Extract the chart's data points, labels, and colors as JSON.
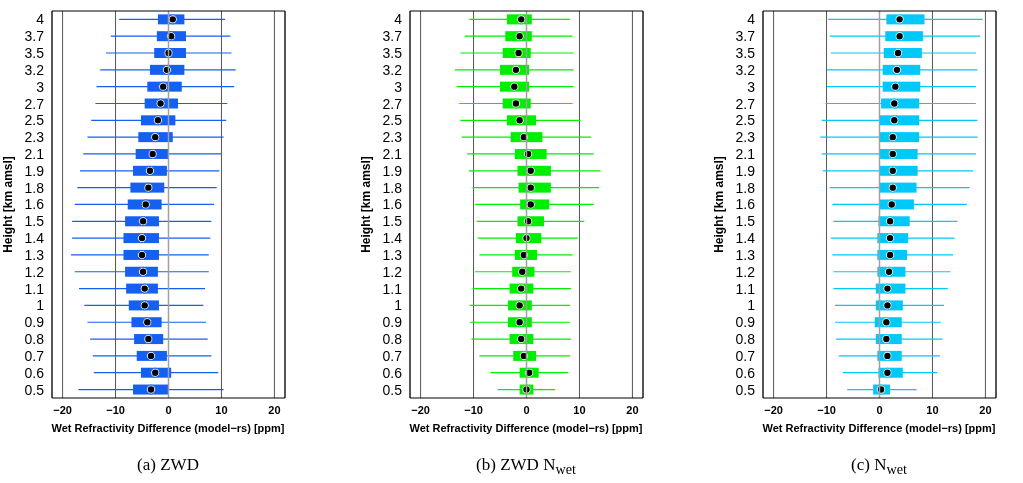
{
  "chart_data": [
    {
      "type": "box",
      "orientation": "horizontal",
      "color": "#1560f0",
      "xlabel": "Wet Refractivity Difference (model−rs) [ppm]",
      "ylabel": "Height [km amsl]",
      "xlim": [
        -22,
        22
      ],
      "xticks": [
        -20,
        -10,
        0,
        10,
        20
      ],
      "grid": "x",
      "ref_lines": [
        {
          "axis": "x",
          "value": 0,
          "color": "#a0a0a0"
        }
      ],
      "annotations": [
        "(a) ZWD"
      ],
      "categories": [
        "4",
        "3.7",
        "3.5",
        "3.2",
        "3",
        "2.7",
        "2.5",
        "2.3",
        "2.1",
        "1.9",
        "1.8",
        "1.6",
        "1.5",
        "1.4",
        "1.3",
        "1.2",
        "1.1",
        "1",
        "0.9",
        "0.8",
        "0.7",
        "0.6",
        "0.5"
      ],
      "boxes": [
        {
          "low": -9.3,
          "q1": -2,
          "median": 0.8,
          "q3": 3,
          "high": 10.7
        },
        {
          "low": -10.9,
          "q1": -2.2,
          "median": 0.5,
          "q3": 3.3,
          "high": 11.7
        },
        {
          "low": -11.8,
          "q1": -2.7,
          "median": 0,
          "q3": 3.3,
          "high": 11.9
        },
        {
          "low": -12.9,
          "q1": -3.5,
          "median": -0.3,
          "q3": 3,
          "high": 12.7
        },
        {
          "low": -13.6,
          "q1": -4,
          "median": -1,
          "q3": 2.5,
          "high": 12.4
        },
        {
          "low": -13.8,
          "q1": -4.5,
          "median": -1.5,
          "q3": 1.8,
          "high": 11.1
        },
        {
          "low": -14.6,
          "q1": -5.2,
          "median": -2,
          "q3": 1.3,
          "high": 10.9
        },
        {
          "low": -15.3,
          "q1": -5.7,
          "median": -2.5,
          "q3": 0.8,
          "high": 10.4
        },
        {
          "low": -16.1,
          "q1": -6.2,
          "median": -3,
          "q3": 0,
          "high": 9.9
        },
        {
          "low": -16.7,
          "q1": -6.7,
          "median": -3.5,
          "q3": -0.3,
          "high": 9.6
        },
        {
          "low": -17.2,
          "q1": -7.2,
          "median": -3.8,
          "q3": -0.8,
          "high": 9.1
        },
        {
          "low": -17.7,
          "q1": -7.7,
          "median": -4.3,
          "q3": -1.3,
          "high": 8.6
        },
        {
          "low": -18.2,
          "q1": -8.2,
          "median": -4.8,
          "q3": -1.8,
          "high": 8.1
        },
        {
          "low": -18.2,
          "q1": -8.5,
          "median": -5,
          "q3": -1.8,
          "high": 7.9
        },
        {
          "low": -18.4,
          "q1": -8.5,
          "median": -5,
          "q3": -1.8,
          "high": 7.6
        },
        {
          "low": -17.7,
          "q1": -8.2,
          "median": -4.8,
          "q3": -2,
          "high": 7.6
        },
        {
          "low": -16.9,
          "q1": -8,
          "median": -4.5,
          "q3": -2,
          "high": 6.9
        },
        {
          "low": -15.9,
          "q1": -7.5,
          "median": -4.5,
          "q3": -1.8,
          "high": 6.6
        },
        {
          "low": -15.3,
          "q1": -7,
          "median": -4,
          "q3": -1.3,
          "high": 7.1
        },
        {
          "low": -14.8,
          "q1": -6.5,
          "median": -3.8,
          "q3": -1,
          "high": 7.4
        },
        {
          "low": -14.3,
          "q1": -6,
          "median": -3.3,
          "q3": -0.3,
          "high": 8.1
        },
        {
          "low": -14.1,
          "q1": -5.2,
          "median": -2.5,
          "q3": 0.5,
          "high": 9.4
        },
        {
          "low": -17,
          "q1": -6.7,
          "median": -3.3,
          "q3": 0,
          "high": 10.4
        }
      ]
    },
    {
      "type": "box",
      "orientation": "horizontal",
      "color": "#00ee00",
      "xlabel": "Wet Refractivity Difference (model−rs) [ppm]",
      "ylabel": "Height [km amsl]",
      "xlim": [
        -22,
        22
      ],
      "xticks": [
        -20,
        -10,
        0,
        10,
        20
      ],
      "grid": "x",
      "ref_lines": [
        {
          "axis": "x",
          "value": 0,
          "color": "#a0a0a0"
        }
      ],
      "annotations": [
        "(b) ZWD N$_{wet}$"
      ],
      "categories": [
        "4",
        "3.7",
        "3.5",
        "3.2",
        "3",
        "2.7",
        "2.5",
        "2.3",
        "2.1",
        "1.9",
        "1.8",
        "1.6",
        "1.5",
        "1.4",
        "1.3",
        "1.2",
        "1.1",
        "1",
        "0.9",
        "0.8",
        "0.7",
        "0.6",
        "0.5"
      ],
      "boxes": [
        {
          "low": -10.8,
          "q1": -3.7,
          "median": -1,
          "q3": 1,
          "high": 8.2
        },
        {
          "low": -11.7,
          "q1": -4,
          "median": -1.3,
          "q3": 1,
          "high": 8.7
        },
        {
          "low": -12.5,
          "q1": -4.5,
          "median": -1.5,
          "q3": 0.8,
          "high": 8.9
        },
        {
          "low": -13.5,
          "q1": -5,
          "median": -2,
          "q3": 0.5,
          "high": 8.9
        },
        {
          "low": -13.2,
          "q1": -5,
          "median": -2.3,
          "q3": 0.5,
          "high": 8.9
        },
        {
          "low": -12.7,
          "q1": -4.5,
          "median": -2,
          "q3": 0.8,
          "high": 8.7
        },
        {
          "low": -12.5,
          "q1": -3.7,
          "median": -1.3,
          "q3": 1.8,
          "high": 10.2
        },
        {
          "low": -12.2,
          "q1": -3,
          "median": -0.5,
          "q3": 3,
          "high": 12.2
        },
        {
          "low": -11.2,
          "q1": -2.2,
          "median": 0.3,
          "q3": 3.8,
          "high": 12.7
        },
        {
          "low": -10.9,
          "q1": -1.7,
          "median": 0.8,
          "q3": 4.6,
          "high": 14
        },
        {
          "low": -10.2,
          "q1": -1.5,
          "median": 0.8,
          "q3": 4.6,
          "high": 13.7
        },
        {
          "low": -9.7,
          "q1": -1.2,
          "median": 0.8,
          "q3": 4.3,
          "high": 12.7
        },
        {
          "low": -9.4,
          "q1": -1.7,
          "median": 0.3,
          "q3": 3.3,
          "high": 10.9
        },
        {
          "low": -9.2,
          "q1": -2,
          "median": 0,
          "q3": 2.8,
          "high": 9.7
        },
        {
          "low": -8.9,
          "q1": -2.2,
          "median": -0.5,
          "q3": 2,
          "high": 8.7
        },
        {
          "low": -9.7,
          "q1": -2.7,
          "median": -0.8,
          "q3": 1.5,
          "high": 8.4
        },
        {
          "low": -10.2,
          "q1": -3.2,
          "median": -1,
          "q3": 1.3,
          "high": 8.4
        },
        {
          "low": -10.7,
          "q1": -3.5,
          "median": -1.3,
          "q3": 1,
          "high": 8.2
        },
        {
          "low": -10.7,
          "q1": -3.5,
          "median": -1.3,
          "q3": 1,
          "high": 8.2
        },
        {
          "low": -10.4,
          "q1": -3.2,
          "median": -1,
          "q3": 1.3,
          "high": 8.4
        },
        {
          "low": -8.9,
          "q1": -2.5,
          "median": -0.5,
          "q3": 1.8,
          "high": 8.2
        },
        {
          "low": -6.8,
          "q1": -1.3,
          "median": 0.5,
          "q3": 2.3,
          "high": 7.9
        },
        {
          "low": -5.4,
          "q1": -1.3,
          "median": 0,
          "q3": 1.3,
          "high": 5.4
        }
      ]
    },
    {
      "type": "box",
      "orientation": "horizontal",
      "color": "#00c8f8",
      "xlabel": "Wet Refractivity Difference (model−rs) [ppm]",
      "ylabel": "Height [km amsl]",
      "xlim": [
        -22,
        22
      ],
      "xticks": [
        -20,
        -10,
        0,
        10,
        20
      ],
      "grid": "x",
      "ref_lines": [
        {
          "axis": "x",
          "value": 0,
          "color": "#a0a0a0"
        }
      ],
      "annotations": [
        "(c) N$_{wet}$"
      ],
      "categories": [
        "4",
        "3.7",
        "3.5",
        "3.2",
        "3",
        "2.7",
        "2.5",
        "2.3",
        "2.1",
        "1.9",
        "1.8",
        "1.6",
        "1.5",
        "1.4",
        "1.3",
        "1.2",
        "1.1",
        "1",
        "0.9",
        "0.8",
        "0.7",
        "0.6",
        "0.5"
      ],
      "boxes": [
        {
          "low": -9.7,
          "q1": 1.3,
          "median": 3.8,
          "q3": 8.5,
          "high": 19.5
        },
        {
          "low": -9.4,
          "q1": 1.1,
          "median": 3.8,
          "q3": 8.2,
          "high": 19
        },
        {
          "low": -9.2,
          "q1": 0.8,
          "median": 3.5,
          "q3": 8,
          "high": 18.2
        },
        {
          "low": -9.9,
          "q1": 0.6,
          "median": 3.3,
          "q3": 7.7,
          "high": 18.5
        },
        {
          "low": -9.9,
          "q1": 0.6,
          "median": 3,
          "q3": 7.7,
          "high": 18.2
        },
        {
          "low": -10.2,
          "q1": 0.3,
          "median": 2.8,
          "q3": 7.5,
          "high": 18.2
        },
        {
          "low": -10.9,
          "q1": 0,
          "median": 2.8,
          "q3": 7.5,
          "high": 18.5
        },
        {
          "low": -11.2,
          "q1": 0,
          "median": 2.5,
          "q3": 7.5,
          "high": 18.5
        },
        {
          "low": -10.9,
          "q1": 0,
          "median": 2.5,
          "q3": 7.2,
          "high": 18.2
        },
        {
          "low": -10.7,
          "q1": 0,
          "median": 2.5,
          "q3": 7.2,
          "high": 17.7
        },
        {
          "low": -9.4,
          "q1": 0,
          "median": 2.5,
          "q3": 7,
          "high": 17
        },
        {
          "low": -8.9,
          "q1": 0,
          "median": 2.3,
          "q3": 6.5,
          "high": 16.5
        },
        {
          "low": -8.7,
          "q1": -0.2,
          "median": 2,
          "q3": 5.7,
          "high": 14.7
        },
        {
          "low": -9.2,
          "q1": -0.4,
          "median": 2,
          "q3": 5.4,
          "high": 14.2
        },
        {
          "low": -8.9,
          "q1": -0.4,
          "median": 2,
          "q3": 5.2,
          "high": 13.9
        },
        {
          "low": -8.7,
          "q1": -0.4,
          "median": 1.8,
          "q3": 4.9,
          "high": 13.4
        },
        {
          "low": -8.7,
          "q1": -0.7,
          "median": 1.5,
          "q3": 4.9,
          "high": 12.9
        },
        {
          "low": -8.4,
          "q1": -0.7,
          "median": 1.5,
          "q3": 4.4,
          "high": 12.2
        },
        {
          "low": -8.4,
          "q1": -0.9,
          "median": 1.3,
          "q3": 4.2,
          "high": 11.6
        },
        {
          "low": -8.2,
          "q1": -0.7,
          "median": 1.3,
          "q3": 4.2,
          "high": 11.9
        },
        {
          "low": -7.7,
          "q1": -0.4,
          "median": 1.5,
          "q3": 4.2,
          "high": 11.4
        },
        {
          "low": -6.9,
          "q1": -0.2,
          "median": 1.5,
          "q3": 4.4,
          "high": 10.9
        },
        {
          "low": -6.1,
          "q1": -1.2,
          "median": 0.3,
          "q3": 2,
          "high": 7
        }
      ]
    }
  ]
}
